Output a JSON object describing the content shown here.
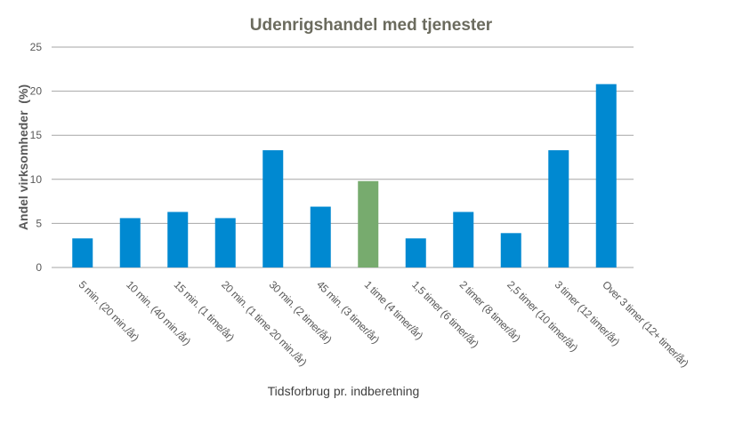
{
  "chart_data": {
    "type": "bar",
    "title": "Udenrigshandel med tjenester",
    "xlabel": "Tidsforbrug pr. indberetning",
    "ylabel": "Andel virksomheder  (%)",
    "ylim": [
      0,
      25
    ],
    "yticks": [
      0,
      5,
      10,
      15,
      20,
      25
    ],
    "grid": true,
    "categories": [
      "5 min. (20 min./år)",
      "10 min. (40 min./år)",
      "15 min. (1 time/år)",
      "20 min. (1 time 20 min./år)",
      "30 min. (2 timer/år)",
      "45 min. (3 timer/år)",
      "1 time (4 timer/år)",
      "1,5 timer (6 timer/år)",
      "2 timer (8 timer/år)",
      "2,5 timer (10 timer/år)",
      "3 timer (12 timer/år)",
      "Over 3 timer (12+ timer/år)"
    ],
    "values": [
      3.3,
      5.6,
      6.3,
      5.6,
      13.3,
      6.9,
      9.8,
      3.3,
      6.3,
      3.9,
      13.3,
      20.8
    ],
    "colors": {
      "bar": "#0089d1",
      "highlight_bar": "#77ab6e",
      "highlight_index": 6,
      "title": "#6b6b5e",
      "axis_text": "#595959",
      "grid": "#a6a6a6"
    }
  }
}
